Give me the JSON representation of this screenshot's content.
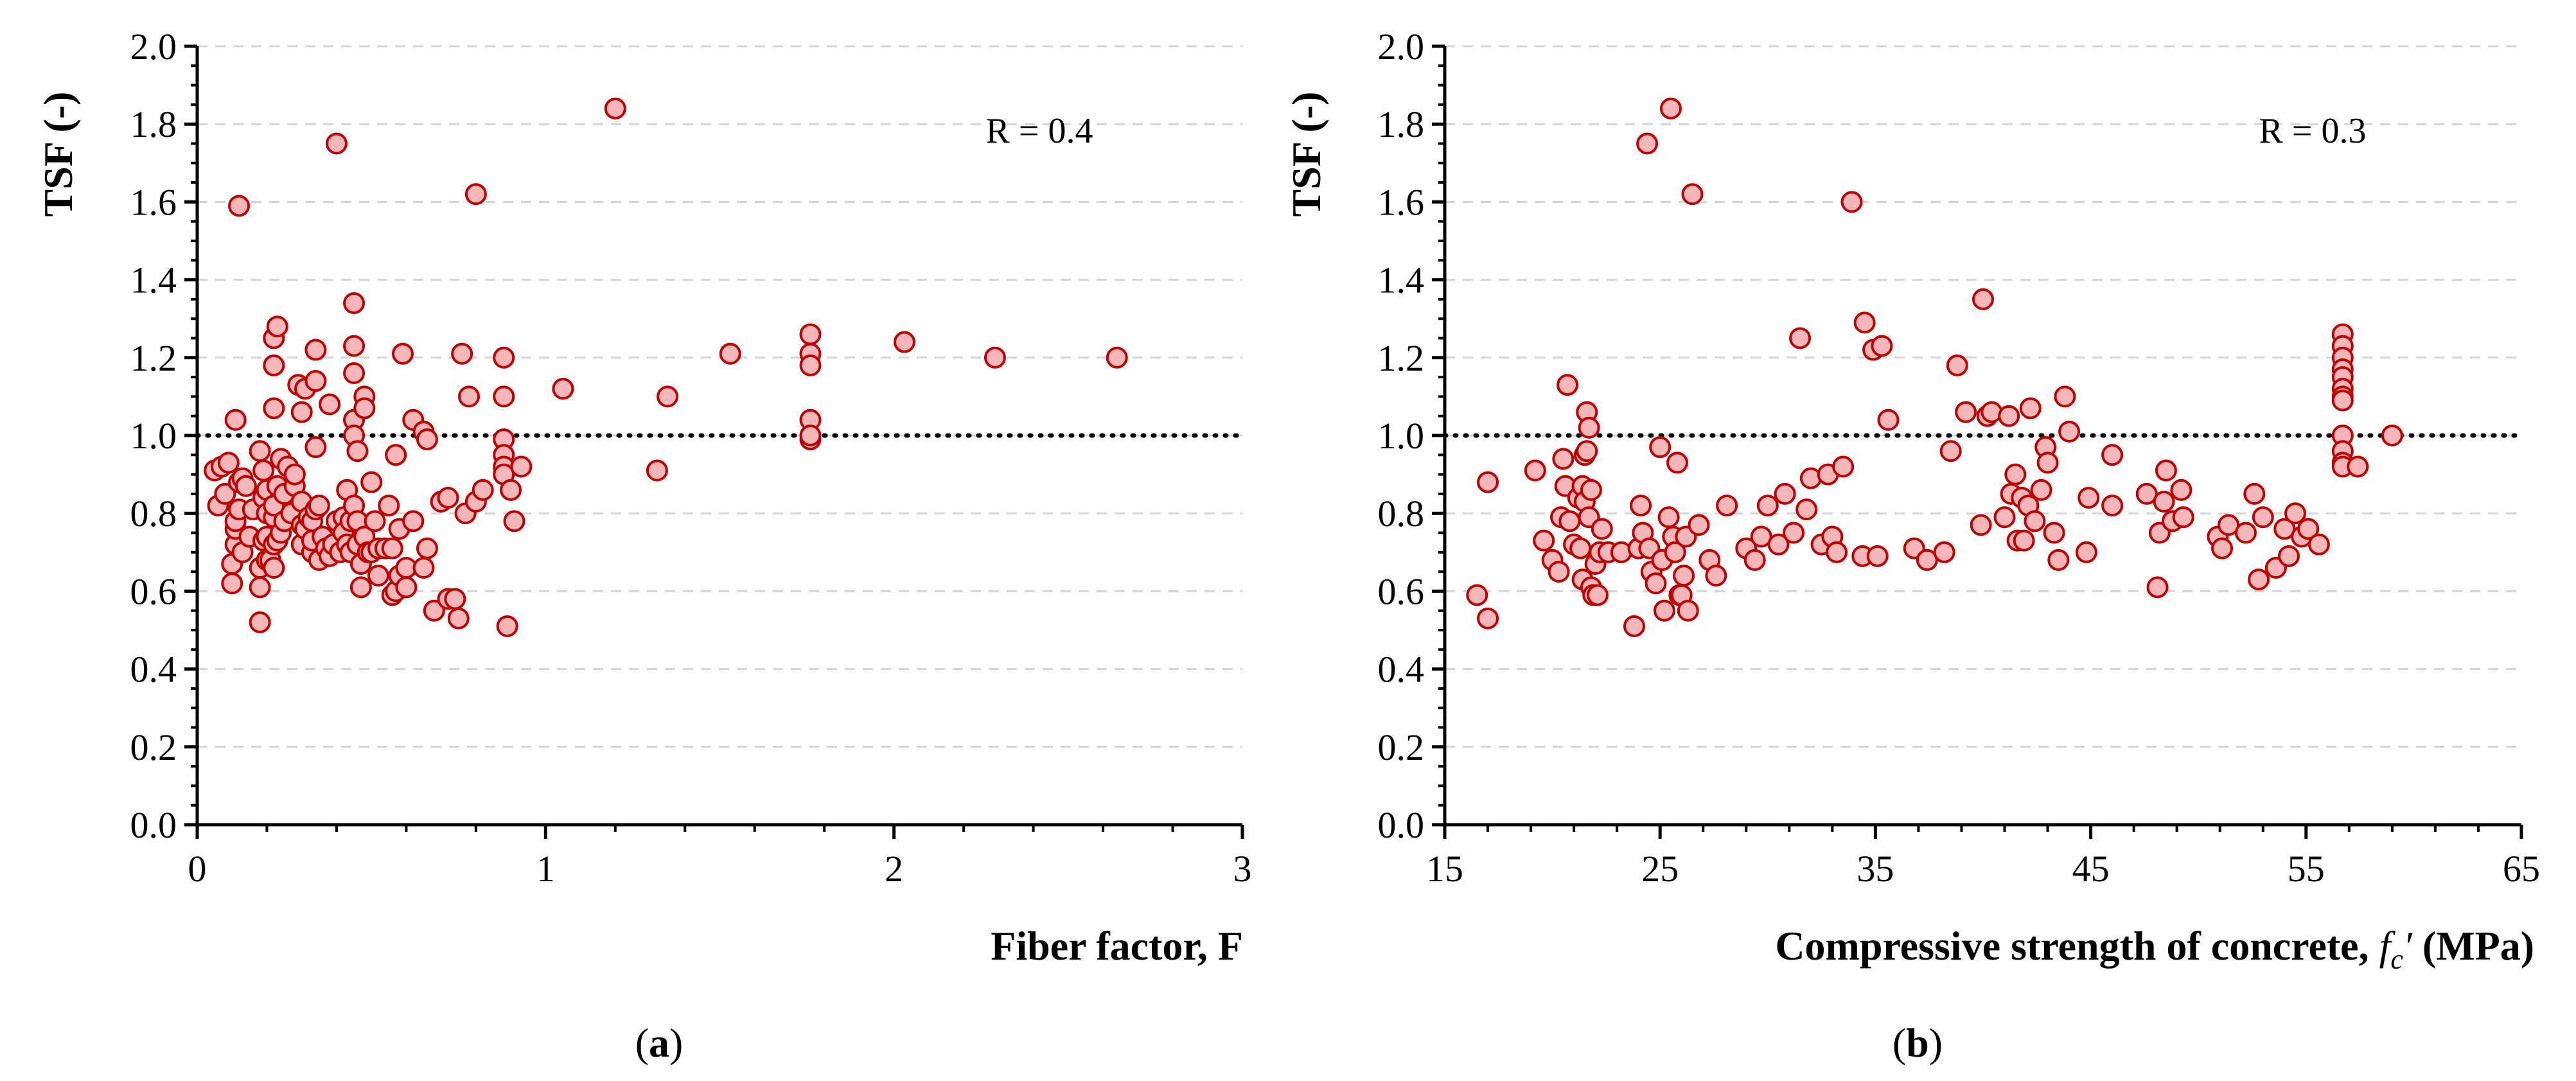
{
  "chart_data": [
    {
      "type": "scatter",
      "xlabel": "Fiber factor, F",
      "ylabel": "TSF (-)",
      "xlim": [
        0,
        3
      ],
      "ylim": [
        0,
        2
      ],
      "xticks": [
        "0",
        "1",
        "2",
        "3"
      ],
      "yticks": [
        "0.0",
        "0.2",
        "0.4",
        "0.6",
        "0.8",
        "1.0",
        "1.2",
        "1.4",
        "1.6",
        "1.8",
        "2.0"
      ],
      "reference_line": 1.0,
      "annotation": "R = 0.4",
      "caption": {
        "open": "(",
        "letter": "a",
        "close": ")"
      },
      "marker_fill": "#f4b6b8",
      "marker_edge": "#c00000",
      "grid": "horizontal dashed",
      "x": [
        0.05,
        0.06,
        0.07,
        0.08,
        0.09,
        0.1,
        0.1,
        0.11,
        0.11,
        0.11,
        0.11,
        0.12,
        0.12,
        0.12,
        0.13,
        0.13,
        0.14,
        0.15,
        0.16,
        0.18,
        0.18,
        0.18,
        0.18,
        0.19,
        0.19,
        0.19,
        0.2,
        0.2,
        0.2,
        0.2,
        0.21,
        0.22,
        0.22,
        0.22,
        0.22,
        0.22,
        0.22,
        0.22,
        0.23,
        0.23,
        0.23,
        0.24,
        0.24,
        0.25,
        0.25,
        0.26,
        0.27,
        0.28,
        0.28,
        0.29,
        0.3,
        0.3,
        0.3,
        0.3,
        0.31,
        0.31,
        0.32,
        0.33,
        0.33,
        0.33,
        0.34,
        0.34,
        0.34,
        0.34,
        0.35,
        0.35,
        0.36,
        0.37,
        0.38,
        0.38,
        0.39,
        0.4,
        0.4,
        0.41,
        0.42,
        0.42,
        0.43,
        0.43,
        0.44,
        0.44,
        0.45,
        0.45,
        0.45,
        0.45,
        0.45,
        0.45,
        0.46,
        0.46,
        0.46,
        0.47,
        0.47,
        0.48,
        0.48,
        0.48,
        0.49,
        0.5,
        0.5,
        0.51,
        0.52,
        0.52,
        0.54,
        0.55,
        0.56,
        0.56,
        0.57,
        0.57,
        0.58,
        0.58,
        0.59,
        0.6,
        0.6,
        0.62,
        0.62,
        0.65,
        0.65,
        0.66,
        0.66,
        0.68,
        0.7,
        0.72,
        0.72,
        0.74,
        0.75,
        0.76,
        0.77,
        0.78,
        0.8,
        0.8,
        0.82,
        0.88,
        0.88,
        0.88,
        0.88,
        0.88,
        0.88,
        0.89,
        0.9,
        0.91,
        0.93,
        1.05,
        1.2,
        1.32,
        1.35,
        1.53,
        1.76,
        1.76,
        1.76,
        1.76,
        1.76,
        1.76,
        2.03,
        2.29,
        2.64
      ],
      "y": [
        0.91,
        0.82,
        0.92,
        0.85,
        0.93,
        0.62,
        0.67,
        0.72,
        0.76,
        0.78,
        1.04,
        0.81,
        0.88,
        1.59,
        0.89,
        0.7,
        0.87,
        0.74,
        0.81,
        0.52,
        0.61,
        0.66,
        0.96,
        0.73,
        0.84,
        0.91,
        0.68,
        0.74,
        0.8,
        0.86,
        0.68,
        0.66,
        0.72,
        0.79,
        0.82,
        1.07,
        1.18,
        1.25,
        0.87,
        0.73,
        1.28,
        0.75,
        0.94,
        0.85,
        0.78,
        0.92,
        0.8,
        0.87,
        0.9,
        1.13,
        1.06,
        0.83,
        0.77,
        0.72,
        0.76,
        1.12,
        0.79,
        0.7,
        0.73,
        0.78,
        0.81,
        0.97,
        1.14,
        1.22,
        0.68,
        0.82,
        0.74,
        0.71,
        1.08,
        0.69,
        0.72,
        1.75,
        0.78,
        0.7,
        0.79,
        0.75,
        0.72,
        0.86,
        0.7,
        0.78,
        1.34,
        1.23,
        1.16,
        1.04,
        1.0,
        0.82,
        0.78,
        0.72,
        0.96,
        0.61,
        0.67,
        1.1,
        1.07,
        0.74,
        0.7,
        0.88,
        0.7,
        0.78,
        0.71,
        0.64,
        0.71,
        0.82,
        0.59,
        0.71,
        0.6,
        0.95,
        0.64,
        0.76,
        1.21,
        0.61,
        0.66,
        1.04,
        0.78,
        1.01,
        0.66,
        0.99,
        0.71,
        0.55,
        0.83,
        0.84,
        0.58,
        0.58,
        0.53,
        1.21,
        0.8,
        1.1,
        1.62,
        0.83,
        0.86,
        1.2,
        1.1,
        0.99,
        0.95,
        0.92,
        0.9,
        0.51,
        0.86,
        0.78,
        0.92,
        1.12,
        1.84,
        0.91,
        1.1,
        1.21,
        1.26,
        1.21,
        1.18,
        1.04,
        0.99,
        1.0,
        1.24,
        1.2,
        1.2
      ]
    },
    {
      "type": "scatter",
      "xlabel_main": "Compressive strength of concrete, ",
      "xlabel_sym_f": "f",
      "xlabel_sym_c": "c",
      "xlabel_sym_prime": "′",
      "xlabel_unit": " (MPa)",
      "ylabel": "TSF (-)",
      "xlim": [
        15,
        65
      ],
      "ylim": [
        0,
        2
      ],
      "xticks": [
        "15",
        "25",
        "35",
        "45",
        "55",
        "65"
      ],
      "yticks": [
        "0.0",
        "0.2",
        "0.4",
        "0.6",
        "0.8",
        "1.0",
        "1.2",
        "1.4",
        "1.6",
        "1.8",
        "2.0"
      ],
      "reference_line": 1.0,
      "annotation": "R = 0.3",
      "caption": {
        "open": "(",
        "letter": "b",
        "close": ")"
      },
      "marker_fill": "#f4b6b8",
      "marker_edge": "#c00000",
      "grid": "horizontal dashed",
      "x": [
        16.5,
        17.0,
        17.0,
        19.2,
        19.6,
        20.0,
        20.3,
        20.4,
        20.5,
        20.6,
        20.7,
        20.8,
        21.0,
        21.2,
        21.3,
        21.4,
        21.4,
        21.5,
        21.5,
        21.6,
        21.6,
        21.7,
        21.7,
        21.8,
        21.8,
        21.9,
        22.0,
        22.1,
        22.2,
        22.3,
        22.6,
        23.2,
        23.8,
        24.0,
        24.1,
        24.2,
        24.4,
        24.5,
        24.6,
        24.8,
        25.0,
        25.1,
        25.2,
        25.4,
        25.5,
        25.6,
        25.7,
        25.8,
        25.9,
        26.0,
        26.1,
        26.2,
        26.3,
        26.5,
        26.8,
        27.3,
        27.6,
        28.1,
        29.0,
        29.4,
        29.7,
        30.0,
        30.5,
        30.8,
        31.2,
        31.5,
        31.8,
        32.0,
        32.5,
        32.8,
        33.0,
        33.2,
        33.5,
        33.9,
        34.4,
        34.5,
        34.9,
        35.1,
        35.3,
        35.6,
        36.8,
        37.4,
        38.2,
        38.5,
        38.8,
        39.2,
        39.9,
        40.0,
        40.2,
        40.4,
        41.0,
        41.2,
        41.3,
        41.5,
        41.6,
        41.8,
        41.9,
        42.1,
        42.2,
        42.4,
        42.7,
        42.9,
        43.0,
        43.3,
        43.5,
        43.8,
        44.0,
        44.8,
        44.9,
        46.0,
        46.0,
        47.6,
        48.1,
        48.2,
        48.4,
        48.5,
        48.8,
        49.2,
        49.3,
        50.9,
        51.1,
        51.4,
        52.2,
        52.6,
        52.8,
        53.0,
        53.6,
        54.0,
        54.2,
        54.5,
        54.8,
        55.1,
        55.6,
        56.7,
        56.7,
        56.7,
        56.7,
        56.7,
        56.7,
        56.7,
        56.7,
        56.7,
        56.7,
        56.7,
        56.7,
        57.4,
        59.0
      ],
      "y": [
        0.59,
        0.53,
        0.88,
        0.91,
        0.73,
        0.68,
        0.65,
        0.79,
        0.94,
        0.87,
        1.13,
        0.78,
        0.72,
        0.84,
        0.71,
        0.87,
        0.63,
        0.95,
        0.83,
        1.06,
        0.96,
        1.02,
        0.79,
        0.86,
        0.61,
        0.59,
        0.67,
        0.59,
        0.7,
        0.76,
        0.7,
        0.7,
        0.51,
        0.71,
        0.82,
        0.75,
        1.75,
        0.71,
        0.65,
        0.62,
        0.97,
        0.68,
        0.55,
        0.79,
        1.84,
        0.74,
        0.7,
        0.93,
        0.59,
        0.59,
        0.64,
        0.74,
        0.55,
        1.62,
        0.77,
        0.68,
        0.64,
        0.82,
        0.71,
        0.68,
        0.74,
        0.82,
        0.72,
        0.85,
        0.75,
        1.25,
        0.81,
        0.89,
        0.72,
        0.9,
        0.74,
        0.7,
        0.92,
        1.6,
        0.69,
        1.29,
        1.22,
        0.69,
        1.23,
        1.04,
        0.71,
        0.68,
        0.7,
        0.96,
        1.18,
        1.06,
        0.77,
        1.35,
        1.05,
        1.06,
        0.79,
        1.05,
        0.85,
        0.9,
        0.73,
        0.84,
        0.73,
        0.82,
        1.07,
        0.78,
        0.86,
        0.97,
        0.93,
        0.75,
        0.68,
        1.1,
        1.01,
        0.7,
        0.84,
        0.95,
        0.82,
        0.85,
        0.61,
        0.75,
        0.83,
        0.91,
        0.78,
        0.86,
        0.79,
        0.74,
        0.71,
        0.77,
        0.75,
        0.85,
        0.63,
        0.79,
        0.66,
        0.76,
        0.69,
        0.8,
        0.74,
        0.76,
        0.72,
        1.26,
        1.23,
        1.2,
        1.17,
        1.15,
        1.12,
        1.1,
        1.09,
        1.0,
        0.96,
        0.93,
        0.92,
        0.92,
        1.0
      ]
    }
  ]
}
